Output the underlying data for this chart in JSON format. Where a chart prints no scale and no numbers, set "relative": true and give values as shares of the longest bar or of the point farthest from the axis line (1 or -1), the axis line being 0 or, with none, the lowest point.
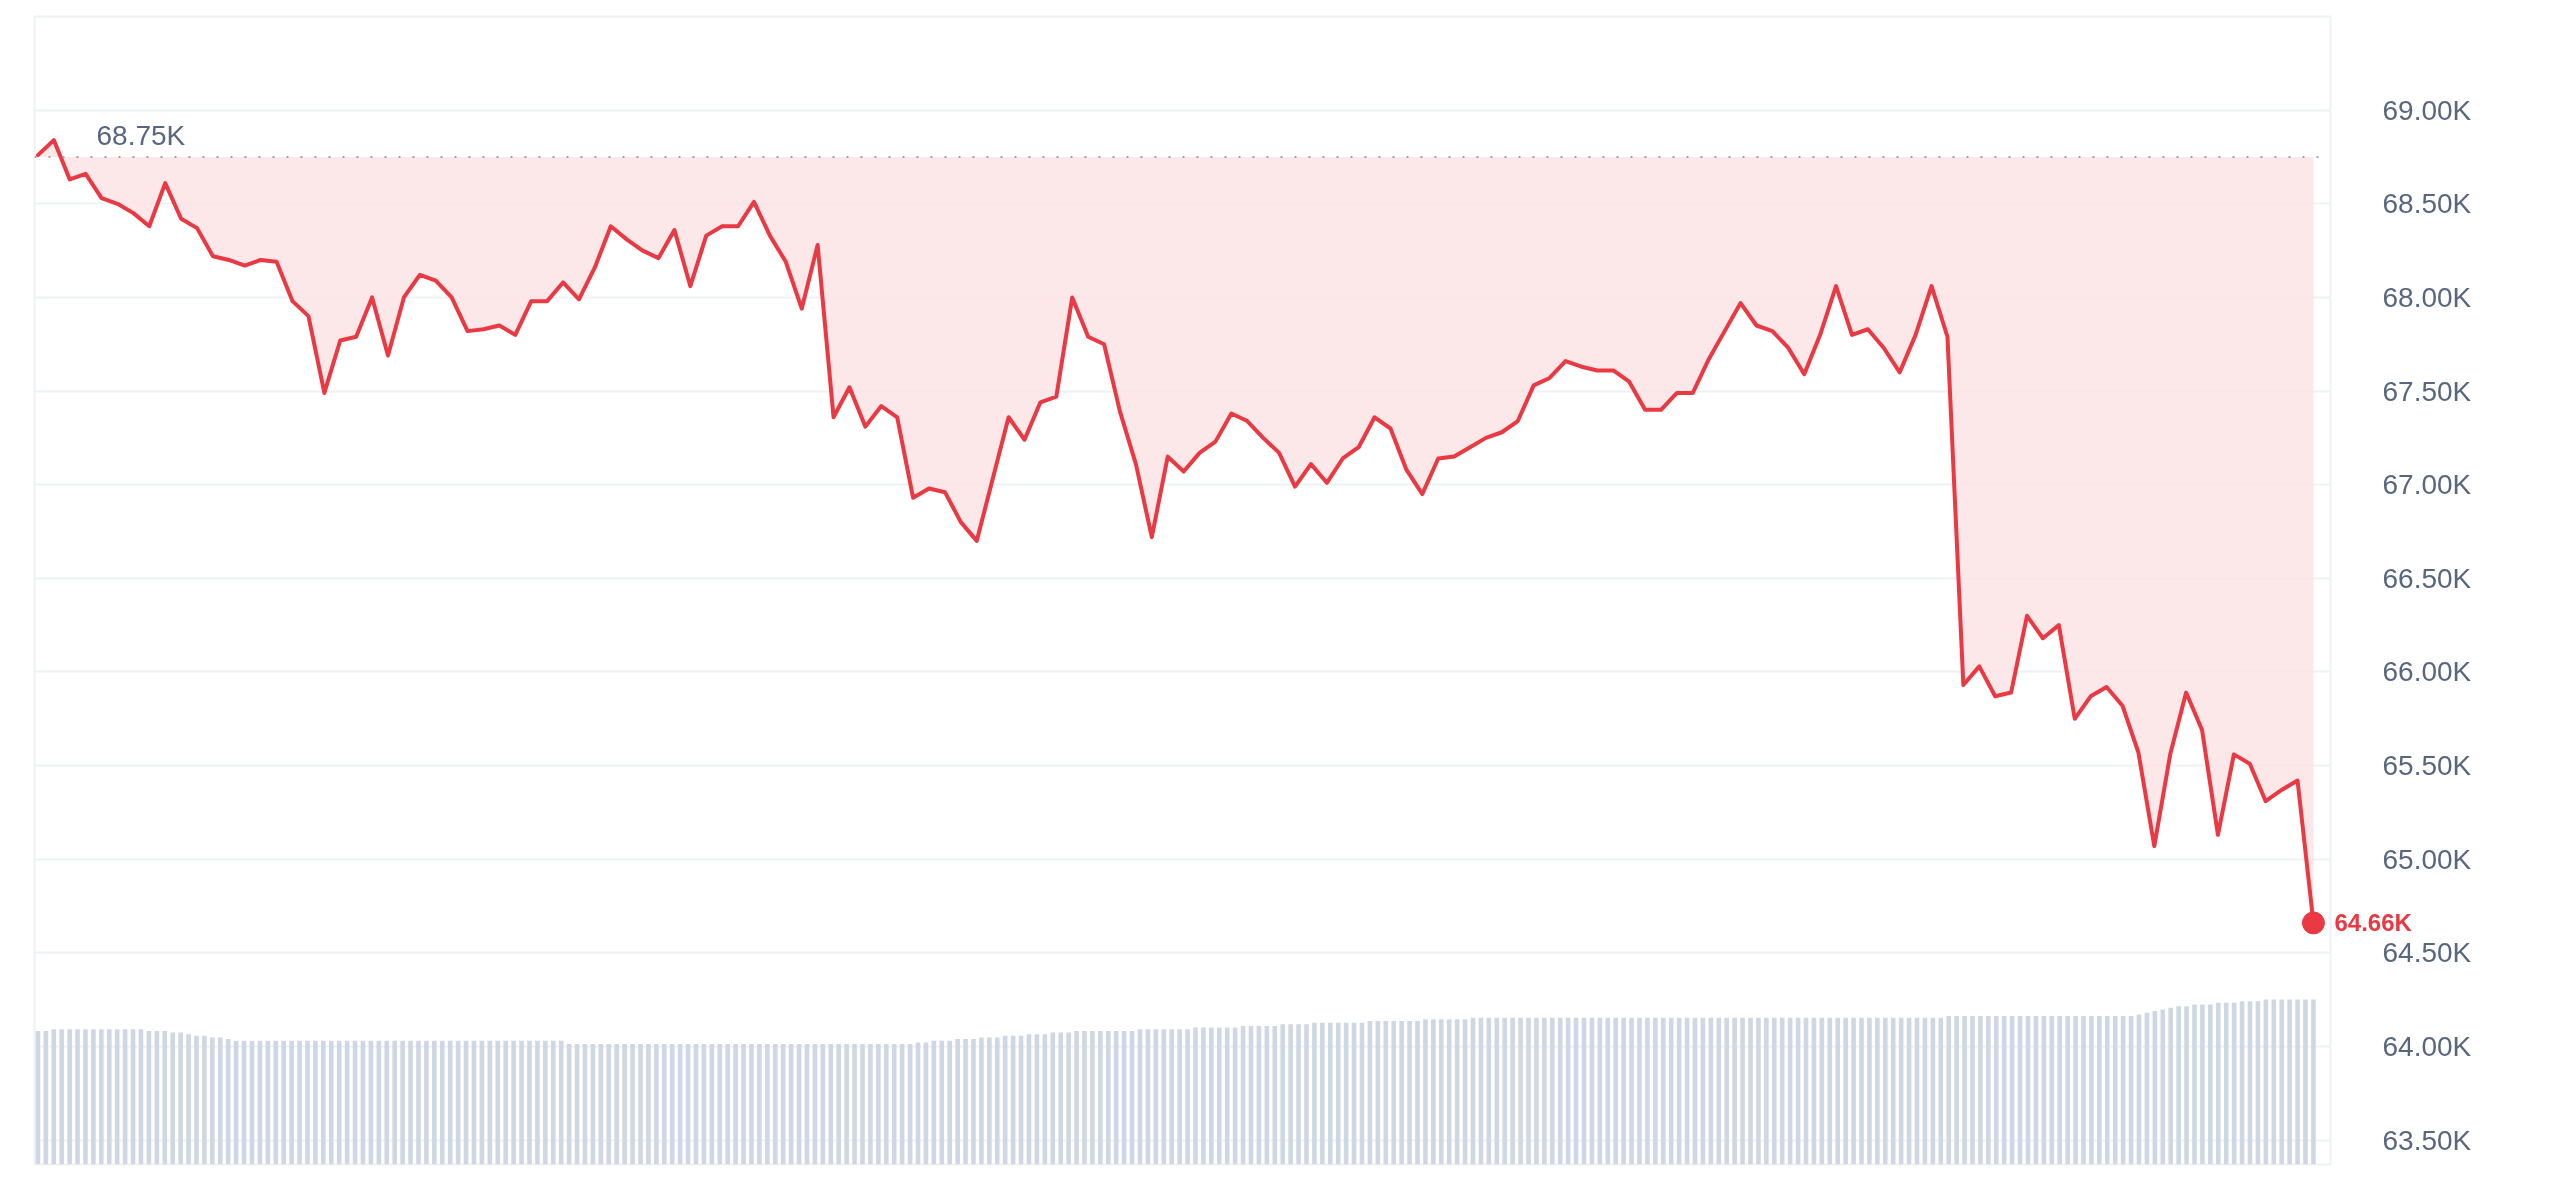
{
  "chart_data": [
    {
      "type": "line",
      "categories": [
        null,
        null,
        null,
        null,
        null,
        null,
        null,
        null,
        null,
        null,
        null,
        null,
        null,
        null,
        null,
        null,
        null,
        null,
        null,
        null,
        null,
        null,
        null,
        null,
        null,
        null,
        null,
        null,
        null,
        null,
        null,
        null,
        null,
        null,
        null,
        null,
        null,
        null,
        null,
        null,
        null,
        null,
        null,
        null,
        null,
        null,
        null,
        null,
        null,
        null,
        null,
        null,
        null,
        null,
        null,
        null,
        null,
        null,
        null,
        null,
        null,
        null,
        null,
        null,
        null,
        null,
        null,
        null,
        null,
        null,
        null,
        null,
        null,
        null,
        null,
        null,
        null,
        null,
        null,
        null,
        null,
        null,
        null,
        null,
        null,
        null,
        null,
        null,
        null,
        null,
        null,
        null,
        null,
        null,
        null,
        null,
        null,
        null,
        null,
        null,
        null,
        null,
        null,
        null,
        null,
        null,
        null,
        null,
        null,
        null,
        null,
        null,
        null,
        null,
        null,
        null,
        null,
        null,
        null,
        null,
        null,
        null,
        null,
        null,
        null,
        null,
        null,
        null,
        null,
        null,
        null,
        null,
        null,
        null,
        null,
        null,
        null,
        null,
        null,
        null,
        null,
        null,
        null,
        null
      ],
      "series": [
        {
          "color": "#ea3943",
          "values": [
            68760,
            68840,
            68630,
            68660,
            68530,
            68500,
            68450,
            68380,
            68610,
            68420,
            68370,
            68220,
            68200,
            68170,
            68200,
            68190,
            67980,
            67900,
            67490,
            67770,
            67790,
            68000,
            67690,
            68000,
            68120,
            68090,
            68000,
            67820,
            67830,
            67850,
            67800,
            67980,
            67980,
            68080,
            67990,
            68160,
            68380,
            68310,
            68250,
            68210,
            68360,
            68060,
            68330,
            68380,
            68380,
            68510,
            68330,
            68190,
            67940,
            68280,
            67360,
            67520,
            67310,
            67420,
            67360,
            66930,
            66980,
            66960,
            66800,
            66700,
            67030,
            67360,
            67240,
            67440,
            67470,
            68000,
            67790,
            67750,
            67390,
            67110,
            66720,
            67150,
            67070,
            67170,
            67230,
            67380,
            67340,
            67250,
            67170,
            66990,
            67110,
            67010,
            67140,
            67200,
            67360,
            67300,
            67080,
            66950,
            67140,
            67150,
            67200,
            67250,
            67280,
            67340,
            67530,
            67570,
            67660,
            67630,
            67610,
            67610,
            67550,
            67400,
            67400,
            67490,
            67490,
            67670,
            67820,
            67970,
            67850,
            67820,
            67730,
            67590,
            67800,
            68060,
            67800,
            67830,
            67730,
            67600,
            67800,
            68060,
            67790,
            65930,
            66030,
            65870,
            65890,
            66300,
            66180,
            66250,
            65750,
            65870,
            65920,
            65820,
            65570,
            65070,
            65560,
            65890,
            65690,
            65130,
            65560,
            65510,
            65310,
            65370,
            65420,
            64660
          ],
          "lower": [
            68760,
            68840,
            68630,
            68660,
            68530,
            68500,
            68450,
            68380,
            68610,
            68420,
            68370,
            68220,
            68200,
            68170,
            68200,
            68190,
            67980,
            67900,
            67490,
            67770,
            67790,
            68000,
            67690,
            68000,
            68120,
            68090,
            68000,
            67820,
            67830,
            67850,
            67800,
            67980,
            67980,
            68080,
            67990,
            68160,
            68380,
            68310,
            68250,
            68210,
            68360,
            68060,
            68330,
            68380,
            68380,
            68510,
            68330,
            68190,
            67940,
            68280,
            67360,
            67520,
            67310,
            67420,
            67360,
            66930,
            66980,
            66960,
            66800,
            66700,
            67030,
            67360,
            67240,
            67440,
            67470,
            68000,
            67790,
            67750,
            67390,
            67110,
            66720,
            67150,
            67070,
            67170,
            67230,
            67380,
            67340,
            67250,
            67170,
            66990,
            67110,
            67010,
            67140,
            67200,
            67360,
            67300,
            67080,
            66950,
            67140,
            67150,
            67200,
            67250,
            67280,
            67340,
            67530,
            67570,
            67660,
            67630,
            67610,
            67610,
            67550,
            67400,
            67400,
            67490,
            67490,
            67670,
            67820,
            67970,
            67850,
            67820,
            67730,
            67590,
            67800,
            68060,
            67800,
            67830,
            67730,
            67600,
            67800,
            68060,
            67790,
            65930,
            66030,
            65870,
            65890,
            66300,
            66180,
            66250,
            65750,
            65870,
            65920,
            65820,
            65570,
            65070,
            65560,
            65890,
            65690,
            65130,
            65560,
            65510,
            65310,
            65370,
            65420,
            64660
          ],
          "upper": [
            68750,
            68750,
            68750,
            68750,
            68750,
            68750,
            68750,
            68750,
            68750,
            68750,
            68750,
            68750,
            68750,
            68750,
            68750,
            68750,
            68750,
            68750,
            68750,
            68750,
            68750,
            68750,
            68750,
            68750,
            68750,
            68750,
            68750,
            68750,
            68750,
            68750,
            68750,
            68750,
            68750,
            68750,
            68750,
            68750,
            68750,
            68750,
            68750,
            68750,
            68750,
            68750,
            68750,
            68750,
            68750,
            68750,
            68750,
            68750,
            68750,
            68750,
            68750,
            68750,
            68750,
            68750,
            68750,
            68750,
            68750,
            68750,
            68750,
            68750,
            68750,
            68750,
            68750,
            68750,
            68750,
            68750,
            68750,
            68750,
            68750,
            68750,
            68750,
            68750,
            68750,
            68750,
            68750,
            68750,
            68750,
            68750,
            68750,
            68750,
            68750,
            68750,
            68750,
            68750,
            68750,
            68750,
            68750,
            68750,
            68750,
            68750,
            68750,
            68750,
            68750,
            68750,
            68750,
            68750,
            68750,
            68750,
            68750,
            68750,
            68750,
            68750,
            68750,
            68750,
            68750,
            68750,
            68750,
            68750,
            68750,
            68750,
            68750,
            68750,
            68750,
            68750,
            68750,
            68750,
            68750,
            68750,
            68750,
            68750,
            68750,
            68750,
            68750,
            68750,
            68750,
            68750,
            68750,
            68750,
            68750,
            68750,
            68750,
            68750,
            68750,
            68750,
            68750,
            68750,
            68750,
            68750,
            68750,
            68750,
            68750,
            68750,
            68750,
            68750
          ],
          "value_labels": [
            null,
            null,
            null,
            null,
            null,
            null,
            null,
            null,
            null,
            null,
            null,
            null,
            null,
            null,
            null,
            null,
            null,
            null,
            null,
            null,
            null,
            null,
            null,
            null,
            null,
            null,
            null,
            null,
            null,
            null,
            null,
            null,
            null,
            null,
            null,
            null,
            null,
            null,
            null,
            null,
            null,
            null,
            null,
            null,
            null,
            null,
            null,
            null,
            null,
            null,
            null,
            null,
            null,
            null,
            null,
            null,
            null,
            null,
            null,
            null,
            null,
            null,
            null,
            null,
            null,
            null,
            null,
            null,
            null,
            null,
            null,
            null,
            null,
            null,
            null,
            null,
            null,
            null,
            null,
            null,
            null,
            null,
            null,
            null,
            null,
            null,
            null,
            null,
            null,
            null,
            null,
            null,
            null,
            null,
            null,
            null,
            null,
            null,
            null,
            null,
            null,
            null,
            null,
            null,
            null,
            null,
            null,
            null,
            null,
            null,
            null,
            null,
            null,
            null,
            null,
            null,
            null,
            null,
            null,
            null,
            null,
            null,
            null,
            null,
            null,
            null,
            null,
            null,
            null,
            null,
            null,
            null,
            null,
            null,
            null,
            null,
            null,
            null,
            null,
            null,
            null,
            null,
            null,
            "64.66K"
          ]
        }
      ],
      "ylim": [
        63370,
        69500
      ],
      "yticks": [
        {
          "value": 63500,
          "label": "63.50K"
        },
        {
          "value": 64000,
          "label": "64.00K"
        },
        {
          "value": 64500,
          "label": "64.50K"
        },
        {
          "value": 65000,
          "label": "65.00K"
        },
        {
          "value": 65500,
          "label": "65.50K"
        },
        {
          "value": 66000,
          "label": "66.00K"
        },
        {
          "value": 66500,
          "label": "66.50K"
        },
        {
          "value": 67000,
          "label": "67.00K"
        },
        {
          "value": 67500,
          "label": "67.50K"
        },
        {
          "value": 68000,
          "label": "68.00K"
        },
        {
          "value": 68500,
          "label": "68.50K"
        },
        {
          "value": 69000,
          "label": "69.00K"
        }
      ],
      "grid": "y",
      "ref_lines": [
        {
          "axis": "y",
          "value": 68750,
          "label": "68.75K",
          "line_style": "dotted",
          "color": "#9aa3b5"
        }
      ]
    },
    {
      "type": "bar",
      "relative": true,
      "color": "#cfd6e4",
      "categories": [
        null,
        null,
        null,
        null,
        null,
        null,
        null,
        null,
        null,
        null,
        null,
        null,
        null,
        null,
        null,
        null,
        null,
        null,
        null,
        null,
        null,
        null,
        null,
        null,
        null,
        null,
        null,
        null,
        null,
        null,
        null,
        null,
        null,
        null,
        null,
        null,
        null,
        null,
        null,
        null,
        null,
        null,
        null,
        null,
        null,
        null,
        null,
        null,
        null,
        null,
        null,
        null,
        null,
        null,
        null,
        null,
        null,
        null,
        null,
        null,
        null,
        null,
        null,
        null,
        null,
        null,
        null,
        null,
        null,
        null,
        null,
        null,
        null,
        null,
        null,
        null,
        null,
        null,
        null,
        null,
        null,
        null,
        null,
        null,
        null,
        null,
        null,
        null,
        null,
        null,
        null,
        null,
        null,
        null,
        null,
        null,
        null,
        null,
        null,
        null,
        null,
        null,
        null,
        null,
        null,
        null,
        null,
        null,
        null,
        null,
        null,
        null,
        null,
        null,
        null,
        null,
        null,
        null,
        null,
        null,
        null,
        null,
        null,
        null,
        null,
        null,
        null,
        null,
        null,
        null,
        null,
        null,
        null,
        null,
        null,
        null,
        null,
        null,
        null,
        null,
        null,
        null,
        null,
        null,
        null,
        null,
        null,
        null,
        null,
        null,
        null,
        null,
        null,
        null,
        null,
        null,
        null,
        null,
        null,
        null,
        null,
        null,
        null,
        null,
        null,
        null,
        null,
        null,
        null,
        null,
        null,
        null,
        null,
        null,
        null,
        null,
        null,
        null,
        null,
        null,
        null,
        null,
        null,
        null,
        null,
        null,
        null,
        null,
        null,
        null,
        null,
        null,
        null,
        null,
        null,
        null,
        null,
        null,
        null,
        null,
        null,
        null,
        null,
        null,
        null,
        null,
        null,
        null,
        null,
        null,
        null,
        null,
        null,
        null,
        null,
        null,
        null,
        null,
        null,
        null,
        null,
        null,
        null,
        null,
        null,
        null,
        null,
        null,
        null,
        null,
        null,
        null,
        null,
        null,
        null,
        null,
        null,
        null,
        null,
        null,
        null,
        null,
        null,
        null,
        null,
        null,
        null,
        null,
        null,
        null,
        null,
        null,
        null,
        null,
        null,
        null,
        null,
        null,
        null,
        null,
        null,
        null,
        null,
        null,
        null,
        null,
        null,
        null,
        null,
        null,
        null,
        null,
        null,
        null,
        null,
        null,
        null,
        null,
        null,
        null,
        null,
        null,
        null,
        null,
        null,
        null,
        null,
        null
      ],
      "values": [
        0.81,
        0.81,
        0.82,
        0.82,
        0.82,
        0.82,
        0.82,
        0.82,
        0.82,
        0.82,
        0.82,
        0.82,
        0.82,
        0.82,
        0.81,
        0.81,
        0.81,
        0.8,
        0.8,
        0.79,
        0.78,
        0.78,
        0.77,
        0.77,
        0.76,
        0.75,
        0.75,
        0.75,
        0.75,
        0.75,
        0.75,
        0.75,
        0.75,
        0.75,
        0.75,
        0.75,
        0.75,
        0.75,
        0.75,
        0.75,
        0.75,
        0.75,
        0.75,
        0.75,
        0.75,
        0.75,
        0.75,
        0.75,
        0.75,
        0.75,
        0.75,
        0.75,
        0.75,
        0.75,
        0.75,
        0.75,
        0.75,
        0.75,
        0.75,
        0.75,
        0.75,
        0.75,
        0.75,
        0.75,
        0.75,
        0.75,
        0.75,
        0.73,
        0.73,
        0.73,
        0.73,
        0.73,
        0.73,
        0.73,
        0.73,
        0.73,
        0.73,
        0.73,
        0.73,
        0.73,
        0.73,
        0.73,
        0.73,
        0.73,
        0.73,
        0.73,
        0.73,
        0.73,
        0.73,
        0.73,
        0.73,
        0.73,
        0.73,
        0.73,
        0.73,
        0.73,
        0.73,
        0.73,
        0.73,
        0.73,
        0.73,
        0.73,
        0.73,
        0.73,
        0.73,
        0.73,
        0.73,
        0.73,
        0.73,
        0.73,
        0.73,
        0.74,
        0.74,
        0.75,
        0.75,
        0.75,
        0.76,
        0.76,
        0.76,
        0.77,
        0.77,
        0.77,
        0.78,
        0.78,
        0.78,
        0.79,
        0.79,
        0.79,
        0.8,
        0.8,
        0.8,
        0.81,
        0.81,
        0.81,
        0.81,
        0.81,
        0.81,
        0.81,
        0.81,
        0.82,
        0.82,
        0.82,
        0.82,
        0.82,
        0.82,
        0.82,
        0.83,
        0.83,
        0.83,
        0.83,
        0.83,
        0.83,
        0.84,
        0.84,
        0.84,
        0.84,
        0.84,
        0.85,
        0.85,
        0.85,
        0.85,
        0.86,
        0.86,
        0.86,
        0.86,
        0.86,
        0.86,
        0.86,
        0.87,
        0.87,
        0.87,
        0.87,
        0.87,
        0.87,
        0.87,
        0.88,
        0.88,
        0.88,
        0.88,
        0.88,
        0.88,
        0.89,
        0.89,
        0.89,
        0.89,
        0.89,
        0.89,
        0.89,
        0.89,
        0.89,
        0.89,
        0.89,
        0.89,
        0.89,
        0.89,
        0.89,
        0.89,
        0.89,
        0.89,
        0.89,
        0.89,
        0.89,
        0.89,
        0.89,
        0.89,
        0.89,
        0.89,
        0.89,
        0.89,
        0.89,
        0.89,
        0.89,
        0.89,
        0.89,
        0.89,
        0.89,
        0.89,
        0.89,
        0.89,
        0.89,
        0.89,
        0.89,
        0.89,
        0.89,
        0.89,
        0.89,
        0.89,
        0.89,
        0.89,
        0.89,
        0.89,
        0.89,
        0.89,
        0.89,
        0.89,
        0.89,
        0.89,
        0.89,
        0.89,
        0.89,
        0.89,
        0.9,
        0.9,
        0.9,
        0.9,
        0.9,
        0.9,
        0.9,
        0.9,
        0.9,
        0.9,
        0.9,
        0.9,
        0.9,
        0.9,
        0.9,
        0.9,
        0.9,
        0.9,
        0.9,
        0.9,
        0.9,
        0.9,
        0.9,
        0.9,
        0.91,
        0.92,
        0.93,
        0.94,
        0.95,
        0.96,
        0.96,
        0.97,
        0.97,
        0.97,
        0.98,
        0.98,
        0.98,
        0.99,
        0.99,
        0.99,
        1,
        1,
        1,
        1,
        1,
        1,
        1
      ]
    }
  ]
}
